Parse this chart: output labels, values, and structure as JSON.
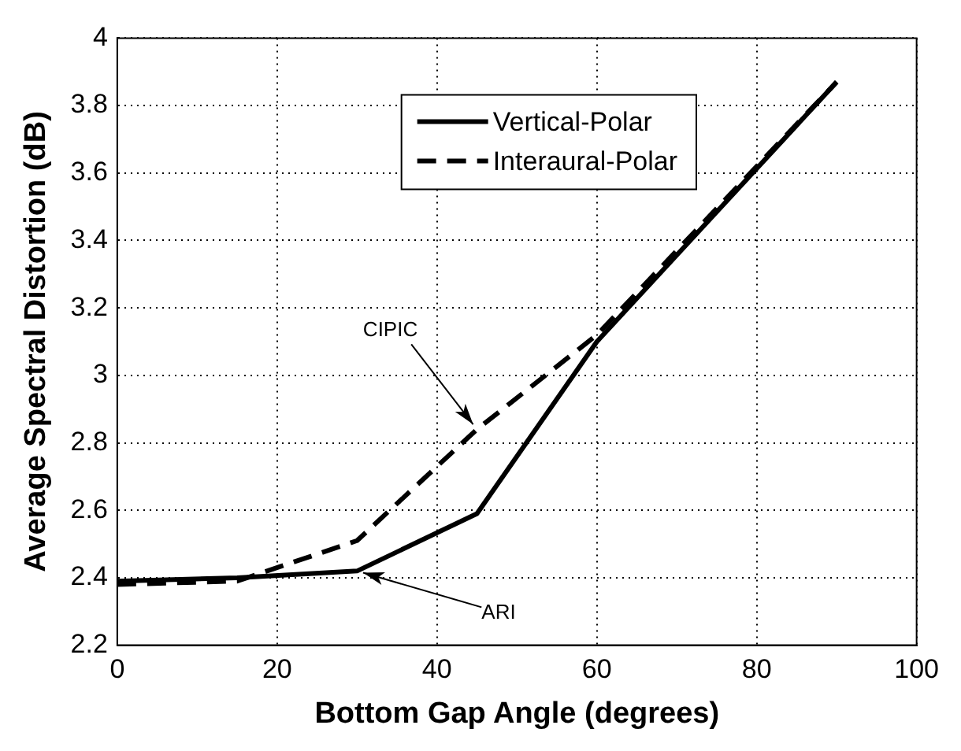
{
  "chart_data": {
    "type": "line",
    "xlabel": "Bottom Gap Angle (degrees)",
    "ylabel": "Average Spectral Distortion (dB)",
    "x": [
      0,
      15,
      30,
      45,
      60,
      90
    ],
    "series": [
      {
        "name": "Vertical-Polar",
        "color": "#000000",
        "line_style": "solid",
        "values": [
          2.39,
          2.4,
          2.42,
          2.59,
          3.1,
          3.87
        ]
      },
      {
        "name": "Interaural-Polar",
        "color": "#000000",
        "line_style": "dashed",
        "values": [
          2.38,
          2.39,
          2.51,
          2.84,
          3.12,
          3.87
        ]
      }
    ],
    "xlim": [
      0,
      100
    ],
    "xticks": [
      0,
      20,
      40,
      60,
      80,
      100
    ],
    "ylim": [
      2.2,
      4
    ],
    "yticks": [
      2.2,
      2.4,
      2.6,
      2.8,
      3,
      3.2,
      3.4,
      3.6,
      3.8,
      4
    ],
    "annotations": [
      {
        "text": "CIPIC",
        "x": 45,
        "y": 2.84
      },
      {
        "text": "ARI",
        "x": 30,
        "y": 2.42
      }
    ],
    "grid": true,
    "legend": "top",
    "marker": "none"
  }
}
